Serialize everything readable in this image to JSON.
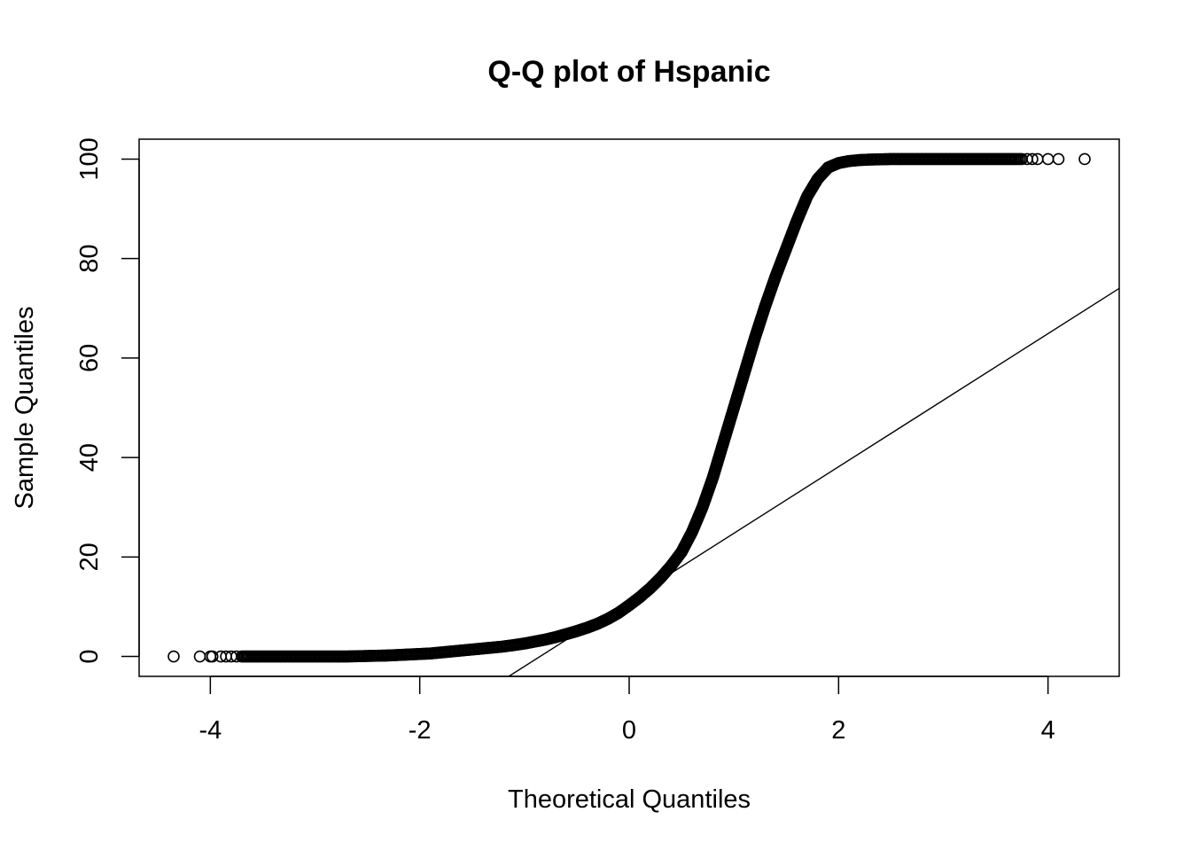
{
  "chart_data": {
    "type": "scatter",
    "title": "Q-Q plot of Hspanic",
    "xlabel": "Theoretical Quantiles",
    "ylabel": "Sample Quantiles",
    "xlim": [
      -4.68,
      4.68
    ],
    "ylim": [
      -4,
      104
    ],
    "x_ticks": [
      -4,
      -2,
      0,
      2,
      4
    ],
    "y_ticks": [
      0,
      20,
      40,
      60,
      80,
      100
    ],
    "grid": false,
    "legend": "none",
    "marker": "open-circle",
    "series": [
      {
        "x": [
          -4.35,
          -4.1,
          -4.0,
          -3.98,
          -3.9,
          -3.85,
          -3.8,
          -3.75,
          -3.7,
          -3.6,
          -3.5,
          -3.4,
          -3.3,
          -3.2,
          -3.1,
          -3.0,
          -2.9,
          -2.8,
          -2.7,
          -2.6,
          -2.5,
          -2.4,
          -2.3,
          -2.2,
          -2.1,
          -2.0,
          -1.9,
          -1.8,
          -1.7,
          -1.6,
          -1.5,
          -1.4,
          -1.3,
          -1.2,
          -1.1,
          -1.0,
          -0.9,
          -0.8,
          -0.7,
          -0.6,
          -0.5,
          -0.4,
          -0.3,
          -0.2,
          -0.1,
          0.0,
          0.1,
          0.2,
          0.3,
          0.4,
          0.5,
          0.6,
          0.7,
          0.8,
          0.9,
          1.0,
          1.1,
          1.2,
          1.3,
          1.4,
          1.5,
          1.6,
          1.7,
          1.8,
          1.9,
          2.0,
          2.1,
          2.2,
          2.3,
          2.4,
          2.5,
          2.6,
          2.7,
          2.8,
          2.9,
          3.0,
          3.1,
          3.2,
          3.3,
          3.4,
          3.5,
          3.6,
          3.7,
          3.75,
          3.8,
          3.85,
          3.9,
          4.0,
          4.1,
          4.35
        ],
        "y": [
          0,
          0,
          0,
          0,
          0,
          0,
          0,
          0,
          0,
          0,
          0,
          0,
          0,
          0,
          0,
          0,
          0,
          0,
          0,
          0.05,
          0.1,
          0.15,
          0.2,
          0.3,
          0.4,
          0.5,
          0.6,
          0.8,
          1.0,
          1.2,
          1.4,
          1.6,
          1.8,
          2.0,
          2.3,
          2.6,
          3.0,
          3.4,
          3.9,
          4.5,
          5.1,
          5.8,
          6.6,
          7.6,
          8.8,
          10.3,
          11.9,
          13.7,
          15.8,
          18.2,
          21.0,
          25.0,
          30.0,
          36.0,
          43.0,
          50.0,
          57.0,
          64.0,
          70.5,
          76.5,
          82.0,
          87.5,
          92.5,
          96.0,
          98.3,
          99.2,
          99.6,
          99.8,
          99.9,
          99.95,
          100,
          100,
          100,
          100,
          100,
          100,
          100,
          100,
          100,
          100,
          100,
          100,
          100,
          100,
          100,
          100,
          100,
          100,
          100,
          100
        ]
      }
    ],
    "reference_line": {
      "x1": -1.15,
      "y1": -4,
      "x2": 4.68,
      "y2": 74
    }
  }
}
